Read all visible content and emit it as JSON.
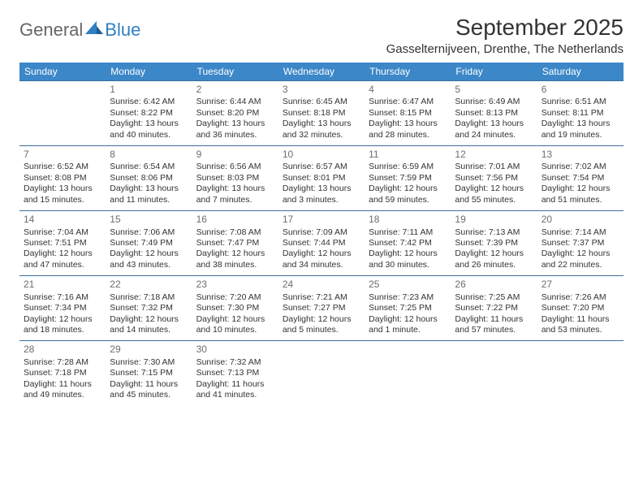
{
  "logo": {
    "general": "General",
    "blue": "Blue"
  },
  "title": "September 2025",
  "location": "Gasselternijveen, Drenthe, The Netherlands",
  "colors": {
    "header_bg": "#3b87c8",
    "header_text": "#ffffff",
    "row_border": "#3b6fa0",
    "daynum_color": "#6d6d6d",
    "text_color": "#333333",
    "logo_accent": "#2f7fc2",
    "background": "#ffffff"
  },
  "dayHeaders": [
    "Sunday",
    "Monday",
    "Tuesday",
    "Wednesday",
    "Thursday",
    "Friday",
    "Saturday"
  ],
  "weeks": [
    [
      null,
      {
        "n": "1",
        "sunrise": "6:42 AM",
        "sunset": "8:22 PM",
        "daylight": "13 hours and 40 minutes."
      },
      {
        "n": "2",
        "sunrise": "6:44 AM",
        "sunset": "8:20 PM",
        "daylight": "13 hours and 36 minutes."
      },
      {
        "n": "3",
        "sunrise": "6:45 AM",
        "sunset": "8:18 PM",
        "daylight": "13 hours and 32 minutes."
      },
      {
        "n": "4",
        "sunrise": "6:47 AM",
        "sunset": "8:15 PM",
        "daylight": "13 hours and 28 minutes."
      },
      {
        "n": "5",
        "sunrise": "6:49 AM",
        "sunset": "8:13 PM",
        "daylight": "13 hours and 24 minutes."
      },
      {
        "n": "6",
        "sunrise": "6:51 AM",
        "sunset": "8:11 PM",
        "daylight": "13 hours and 19 minutes."
      }
    ],
    [
      {
        "n": "7",
        "sunrise": "6:52 AM",
        "sunset": "8:08 PM",
        "daylight": "13 hours and 15 minutes."
      },
      {
        "n": "8",
        "sunrise": "6:54 AM",
        "sunset": "8:06 PM",
        "daylight": "13 hours and 11 minutes."
      },
      {
        "n": "9",
        "sunrise": "6:56 AM",
        "sunset": "8:03 PM",
        "daylight": "13 hours and 7 minutes."
      },
      {
        "n": "10",
        "sunrise": "6:57 AM",
        "sunset": "8:01 PM",
        "daylight": "13 hours and 3 minutes."
      },
      {
        "n": "11",
        "sunrise": "6:59 AM",
        "sunset": "7:59 PM",
        "daylight": "12 hours and 59 minutes."
      },
      {
        "n": "12",
        "sunrise": "7:01 AM",
        "sunset": "7:56 PM",
        "daylight": "12 hours and 55 minutes."
      },
      {
        "n": "13",
        "sunrise": "7:02 AM",
        "sunset": "7:54 PM",
        "daylight": "12 hours and 51 minutes."
      }
    ],
    [
      {
        "n": "14",
        "sunrise": "7:04 AM",
        "sunset": "7:51 PM",
        "daylight": "12 hours and 47 minutes."
      },
      {
        "n": "15",
        "sunrise": "7:06 AM",
        "sunset": "7:49 PM",
        "daylight": "12 hours and 43 minutes."
      },
      {
        "n": "16",
        "sunrise": "7:08 AM",
        "sunset": "7:47 PM",
        "daylight": "12 hours and 38 minutes."
      },
      {
        "n": "17",
        "sunrise": "7:09 AM",
        "sunset": "7:44 PM",
        "daylight": "12 hours and 34 minutes."
      },
      {
        "n": "18",
        "sunrise": "7:11 AM",
        "sunset": "7:42 PM",
        "daylight": "12 hours and 30 minutes."
      },
      {
        "n": "19",
        "sunrise": "7:13 AM",
        "sunset": "7:39 PM",
        "daylight": "12 hours and 26 minutes."
      },
      {
        "n": "20",
        "sunrise": "7:14 AM",
        "sunset": "7:37 PM",
        "daylight": "12 hours and 22 minutes."
      }
    ],
    [
      {
        "n": "21",
        "sunrise": "7:16 AM",
        "sunset": "7:34 PM",
        "daylight": "12 hours and 18 minutes."
      },
      {
        "n": "22",
        "sunrise": "7:18 AM",
        "sunset": "7:32 PM",
        "daylight": "12 hours and 14 minutes."
      },
      {
        "n": "23",
        "sunrise": "7:20 AM",
        "sunset": "7:30 PM",
        "daylight": "12 hours and 10 minutes."
      },
      {
        "n": "24",
        "sunrise": "7:21 AM",
        "sunset": "7:27 PM",
        "daylight": "12 hours and 5 minutes."
      },
      {
        "n": "25",
        "sunrise": "7:23 AM",
        "sunset": "7:25 PM",
        "daylight": "12 hours and 1 minute."
      },
      {
        "n": "26",
        "sunrise": "7:25 AM",
        "sunset": "7:22 PM",
        "daylight": "11 hours and 57 minutes."
      },
      {
        "n": "27",
        "sunrise": "7:26 AM",
        "sunset": "7:20 PM",
        "daylight": "11 hours and 53 minutes."
      }
    ],
    [
      {
        "n": "28",
        "sunrise": "7:28 AM",
        "sunset": "7:18 PM",
        "daylight": "11 hours and 49 minutes."
      },
      {
        "n": "29",
        "sunrise": "7:30 AM",
        "sunset": "7:15 PM",
        "daylight": "11 hours and 45 minutes."
      },
      {
        "n": "30",
        "sunrise": "7:32 AM",
        "sunset": "7:13 PM",
        "daylight": "11 hours and 41 minutes."
      },
      null,
      null,
      null,
      null
    ]
  ]
}
